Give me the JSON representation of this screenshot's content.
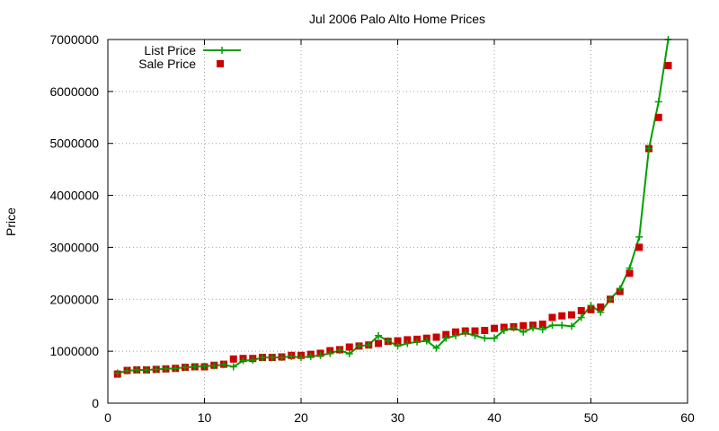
{
  "chart_data": {
    "type": "line",
    "title": "Jul 2006 Palo Alto Home Prices",
    "xlabel": "",
    "ylabel": "Price",
    "xlim": [
      0,
      60
    ],
    "ylim": [
      0,
      7000000
    ],
    "xticks": [
      0,
      10,
      20,
      30,
      40,
      50,
      60
    ],
    "yticks": [
      0,
      1000000,
      2000000,
      3000000,
      4000000,
      5000000,
      6000000,
      7000000
    ],
    "grid": true,
    "legend_position": "top-left",
    "series": [
      {
        "name": "List Price",
        "style": "line-with-plus-markers",
        "color": "#00a000",
        "points": [
          [
            1,
            580000
          ],
          [
            2,
            620000
          ],
          [
            3,
            640000
          ],
          [
            4,
            640000
          ],
          [
            5,
            650000
          ],
          [
            6,
            660000
          ],
          [
            7,
            670000
          ],
          [
            8,
            690000
          ],
          [
            9,
            700000
          ],
          [
            10,
            710000
          ],
          [
            11,
            720000
          ],
          [
            12,
            740000
          ],
          [
            13,
            700000
          ],
          [
            14,
            820000
          ],
          [
            15,
            830000
          ],
          [
            16,
            880000
          ],
          [
            17,
            880000
          ],
          [
            18,
            880000
          ],
          [
            19,
            900000
          ],
          [
            20,
            880000
          ],
          [
            21,
            900000
          ],
          [
            22,
            920000
          ],
          [
            23,
            960000
          ],
          [
            24,
            1020000
          ],
          [
            25,
            950000
          ],
          [
            26,
            1100000
          ],
          [
            27,
            1120000
          ],
          [
            28,
            1300000
          ],
          [
            29,
            1200000
          ],
          [
            30,
            1100000
          ],
          [
            31,
            1150000
          ],
          [
            32,
            1180000
          ],
          [
            33,
            1200000
          ],
          [
            34,
            1060000
          ],
          [
            35,
            1250000
          ],
          [
            36,
            1300000
          ],
          [
            37,
            1350000
          ],
          [
            38,
            1300000
          ],
          [
            39,
            1250000
          ],
          [
            40,
            1250000
          ],
          [
            41,
            1400000
          ],
          [
            42,
            1450000
          ],
          [
            43,
            1370000
          ],
          [
            44,
            1450000
          ],
          [
            45,
            1420000
          ],
          [
            46,
            1500000
          ],
          [
            47,
            1500000
          ],
          [
            48,
            1480000
          ],
          [
            49,
            1650000
          ],
          [
            50,
            1880000
          ],
          [
            51,
            1750000
          ],
          [
            52,
            2000000
          ],
          [
            53,
            2200000
          ],
          [
            54,
            2600000
          ],
          [
            55,
            3200000
          ],
          [
            56,
            4900000
          ],
          [
            57,
            5800000
          ],
          [
            58,
            7000000
          ]
        ]
      },
      {
        "name": "Sale Price",
        "style": "square-markers",
        "color": "#cc0000",
        "points": [
          [
            1,
            560000
          ],
          [
            2,
            630000
          ],
          [
            3,
            640000
          ],
          [
            4,
            640000
          ],
          [
            5,
            650000
          ],
          [
            6,
            660000
          ],
          [
            7,
            670000
          ],
          [
            8,
            690000
          ],
          [
            9,
            700000
          ],
          [
            10,
            700000
          ],
          [
            11,
            730000
          ],
          [
            12,
            750000
          ],
          [
            13,
            850000
          ],
          [
            14,
            860000
          ],
          [
            15,
            860000
          ],
          [
            16,
            880000
          ],
          [
            17,
            880000
          ],
          [
            18,
            890000
          ],
          [
            19,
            920000
          ],
          [
            20,
            920000
          ],
          [
            21,
            940000
          ],
          [
            22,
            960000
          ],
          [
            23,
            1010000
          ],
          [
            24,
            1030000
          ],
          [
            25,
            1080000
          ],
          [
            26,
            1100000
          ],
          [
            27,
            1120000
          ],
          [
            28,
            1150000
          ],
          [
            29,
            1190000
          ],
          [
            30,
            1200000
          ],
          [
            31,
            1220000
          ],
          [
            32,
            1230000
          ],
          [
            33,
            1250000
          ],
          [
            34,
            1270000
          ],
          [
            35,
            1320000
          ],
          [
            36,
            1370000
          ],
          [
            37,
            1390000
          ],
          [
            38,
            1390000
          ],
          [
            39,
            1400000
          ],
          [
            40,
            1440000
          ],
          [
            41,
            1460000
          ],
          [
            42,
            1470000
          ],
          [
            43,
            1490000
          ],
          [
            44,
            1500000
          ],
          [
            45,
            1520000
          ],
          [
            46,
            1650000
          ],
          [
            47,
            1680000
          ],
          [
            48,
            1700000
          ],
          [
            49,
            1780000
          ],
          [
            50,
            1800000
          ],
          [
            51,
            1850000
          ],
          [
            52,
            2000000
          ],
          [
            53,
            2150000
          ],
          [
            54,
            2500000
          ],
          [
            55,
            3000000
          ],
          [
            56,
            4900000
          ],
          [
            57,
            5500000
          ],
          [
            58,
            6500000
          ]
        ]
      }
    ]
  }
}
